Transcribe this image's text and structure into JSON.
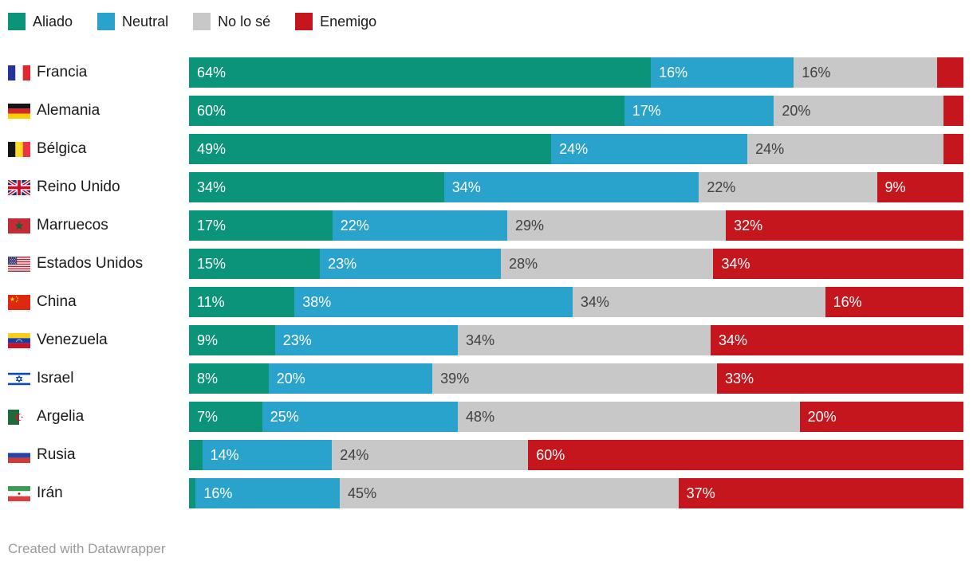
{
  "legend": {
    "items": [
      {
        "key": "aliado",
        "label": "Aliado",
        "color": "#0b9479",
        "text_color": "#ffffff"
      },
      {
        "key": "neutral",
        "label": "Neutral",
        "color": "#29a2cc",
        "text_color": "#ffffff"
      },
      {
        "key": "no_lo_se",
        "label": "No lo sé",
        "color": "#c8c8c8",
        "text_color": "#404040"
      },
      {
        "key": "enemigo",
        "label": "Enemigo",
        "color": "#c4161c",
        "text_color": "#ffffff"
      }
    ]
  },
  "rows": [
    {
      "country": "Francia",
      "flag": "francia",
      "segments": [
        {
          "key": "aliado",
          "value": 64,
          "label": "64%"
        },
        {
          "key": "neutral",
          "value": 16,
          "label": "16%"
        },
        {
          "key": "no_lo_se",
          "value": 16,
          "label": "16%"
        },
        {
          "key": "enemigo",
          "value": 4,
          "label": ""
        }
      ]
    },
    {
      "country": "Alemania",
      "flag": "alemania",
      "segments": [
        {
          "key": "aliado",
          "value": 60,
          "label": "60%"
        },
        {
          "key": "neutral",
          "value": 17,
          "label": "17%"
        },
        {
          "key": "no_lo_se",
          "value": 20,
          "label": "20%"
        },
        {
          "key": "enemigo",
          "value": 3,
          "label": ""
        }
      ]
    },
    {
      "country": "Bélgica",
      "flag": "belgica",
      "segments": [
        {
          "key": "aliado",
          "value": 49,
          "label": "49%"
        },
        {
          "key": "neutral",
          "value": 24,
          "label": "24%"
        },
        {
          "key": "no_lo_se",
          "value": 24,
          "label": "24%"
        },
        {
          "key": "enemigo",
          "value": 3,
          "label": ""
        }
      ]
    },
    {
      "country": "Reino Unido",
      "flag": "reino-unido",
      "segments": [
        {
          "key": "aliado",
          "value": 34,
          "label": "34%"
        },
        {
          "key": "neutral",
          "value": 34,
          "label": "34%"
        },
        {
          "key": "no_lo_se",
          "value": 22,
          "label": "22%"
        },
        {
          "key": "enemigo",
          "value": 9,
          "label": "9%"
        }
      ]
    },
    {
      "country": "Marruecos",
      "flag": "marruecos",
      "segments": [
        {
          "key": "aliado",
          "value": 17,
          "label": "17%"
        },
        {
          "key": "neutral",
          "value": 22,
          "label": "22%"
        },
        {
          "key": "no_lo_se",
          "value": 29,
          "label": "29%"
        },
        {
          "key": "enemigo",
          "value": 32,
          "label": "32%"
        }
      ]
    },
    {
      "country": "Estados Unidos",
      "flag": "estados-unidos",
      "segments": [
        {
          "key": "aliado",
          "value": 15,
          "label": "15%"
        },
        {
          "key": "neutral",
          "value": 23,
          "label": "23%"
        },
        {
          "key": "no_lo_se",
          "value": 28,
          "label": "28%"
        },
        {
          "key": "enemigo",
          "value": 34,
          "label": "34%"
        }
      ]
    },
    {
      "country": "China",
      "flag": "china",
      "segments": [
        {
          "key": "aliado",
          "value": 11,
          "label": "11%"
        },
        {
          "key": "neutral",
          "value": 38,
          "label": "38%"
        },
        {
          "key": "no_lo_se",
          "value": 34,
          "label": "34%"
        },
        {
          "key": "enemigo",
          "value": 16,
          "label": "16%"
        }
      ]
    },
    {
      "country": "Venezuela",
      "flag": "venezuela",
      "segments": [
        {
          "key": "aliado",
          "value": 9,
          "label": "9%"
        },
        {
          "key": "neutral",
          "value": 23,
          "label": "23%"
        },
        {
          "key": "no_lo_se",
          "value": 34,
          "label": "34%"
        },
        {
          "key": "enemigo",
          "value": 34,
          "label": "34%"
        }
      ]
    },
    {
      "country": "Israel",
      "flag": "israel",
      "segments": [
        {
          "key": "aliado",
          "value": 8,
          "label": "8%"
        },
        {
          "key": "neutral",
          "value": 20,
          "label": "20%"
        },
        {
          "key": "no_lo_se",
          "value": 39,
          "label": "39%"
        },
        {
          "key": "enemigo",
          "value": 33,
          "label": "33%"
        }
      ]
    },
    {
      "country": "Argelia",
      "flag": "argelia",
      "segments": [
        {
          "key": "aliado",
          "value": 7,
          "label": "7%"
        },
        {
          "key": "neutral",
          "value": 25,
          "label": "25%"
        },
        {
          "key": "no_lo_se",
          "value": 48,
          "label": "48%"
        },
        {
          "key": "enemigo",
          "value": 20,
          "label": "20%"
        }
      ]
    },
    {
      "country": "Rusia",
      "flag": "rusia",
      "segments": [
        {
          "key": "aliado",
          "value": 2,
          "label": ""
        },
        {
          "key": "neutral",
          "value": 14,
          "label": "14%"
        },
        {
          "key": "no_lo_se",
          "value": 24,
          "label": "24%"
        },
        {
          "key": "enemigo",
          "value": 60,
          "label": "60%"
        }
      ]
    },
    {
      "country": "Irán",
      "flag": "iran",
      "segments": [
        {
          "key": "aliado",
          "value": 1,
          "label": ""
        },
        {
          "key": "neutral",
          "value": 16,
          "label": "16%"
        },
        {
          "key": "no_lo_se",
          "value": 45,
          "label": "45%"
        },
        {
          "key": "enemigo",
          "value": 37,
          "label": "37%"
        }
      ]
    }
  ],
  "footer": {
    "credit": "Created with Datawrapper"
  },
  "chart_data": {
    "type": "bar",
    "stacked": true,
    "orientation": "horizontal",
    "unit": "%",
    "xlim": [
      0,
      100
    ],
    "legend_position": "top",
    "grid": false,
    "categories": [
      "Francia",
      "Alemania",
      "Bélgica",
      "Reino Unido",
      "Marruecos",
      "Estados Unidos",
      "China",
      "Venezuela",
      "Israel",
      "Argelia",
      "Rusia",
      "Irán"
    ],
    "series": [
      {
        "name": "Aliado",
        "color": "#0b9479",
        "values": [
          64,
          60,
          49,
          34,
          17,
          15,
          11,
          9,
          8,
          7,
          2,
          1
        ]
      },
      {
        "name": "Neutral",
        "color": "#29a2cc",
        "values": [
          16,
          17,
          24,
          34,
          22,
          23,
          38,
          23,
          20,
          25,
          14,
          16
        ]
      },
      {
        "name": "No lo sé",
        "color": "#c8c8c8",
        "values": [
          16,
          20,
          24,
          22,
          29,
          28,
          34,
          34,
          39,
          48,
          24,
          45
        ]
      },
      {
        "name": "Enemigo",
        "color": "#c4161c",
        "values": [
          4,
          3,
          3,
          9,
          32,
          34,
          16,
          34,
          33,
          20,
          60,
          37
        ]
      }
    ]
  }
}
